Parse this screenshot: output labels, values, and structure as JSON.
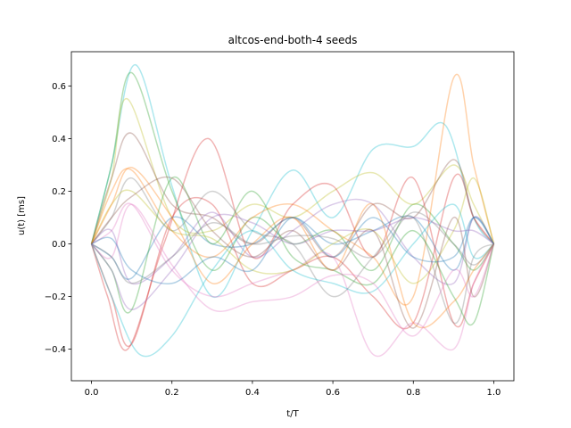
{
  "chart_data": {
    "type": "line",
    "title": "altcos-end-both-4 seeds",
    "xlabel": "t/T",
    "ylabel": "u(t) [ms]",
    "xlim": [
      -0.05,
      1.05
    ],
    "ylim": [
      -0.52,
      0.73
    ],
    "xticks": [
      0.0,
      0.2,
      0.4,
      0.6,
      0.8,
      1.0
    ],
    "xtick_labels": [
      "0.0",
      "0.2",
      "0.4",
      "0.6",
      "0.8",
      "1.0"
    ],
    "yticks": [
      -0.4,
      -0.2,
      0.0,
      0.2,
      0.4,
      0.6
    ],
    "ytick_labels": [
      "−0.4",
      "−0.2",
      "0.0",
      "0.2",
      "0.4",
      "0.6"
    ],
    "grid": false,
    "legend": "none",
    "line_opacity": 0.35,
    "series": [
      {
        "color": "#17becf",
        "x": [
          0,
          0.05,
          0.11,
          0.2,
          0.3,
          0.4,
          0.5,
          0.6,
          0.7,
          0.8,
          0.88,
          0.95,
          1
        ],
        "y": [
          0,
          0.3,
          0.68,
          0.22,
          -0.2,
          0.05,
          0.28,
          0.1,
          0.36,
          0.37,
          0.45,
          0.1,
          0
        ]
      },
      {
        "color": "#2ca02c",
        "x": [
          0,
          0.05,
          0.1,
          0.2,
          0.3,
          0.4,
          0.5,
          0.6,
          0.7,
          0.8,
          0.9,
          0.95,
          1
        ],
        "y": [
          0,
          0.3,
          0.65,
          0.2,
          -0.1,
          0.1,
          0.0,
          0.05,
          -0.1,
          0.15,
          0.0,
          -0.1,
          0
        ]
      },
      {
        "color": "#bcbd22",
        "x": [
          0,
          0.05,
          0.09,
          0.2,
          0.3,
          0.4,
          0.5,
          0.6,
          0.7,
          0.8,
          0.9,
          0.95,
          1
        ],
        "y": [
          0,
          0.25,
          0.55,
          0.1,
          0.05,
          0.15,
          0.1,
          0.2,
          0.27,
          0.15,
          0.3,
          0.15,
          0
        ]
      },
      {
        "color": "#ff7f0e",
        "x": [
          0,
          0.05,
          0.1,
          0.2,
          0.3,
          0.4,
          0.5,
          0.6,
          0.7,
          0.8,
          0.9,
          0.95,
          1
        ],
        "y": [
          0,
          0.2,
          0.28,
          0.05,
          -0.05,
          0.1,
          0.15,
          0.05,
          -0.05,
          -0.2,
          0.63,
          0.3,
          0
        ]
      },
      {
        "color": "#8c564b",
        "x": [
          0,
          0.05,
          0.1,
          0.2,
          0.3,
          0.4,
          0.5,
          0.6,
          0.7,
          0.8,
          0.9,
          0.95,
          1
        ],
        "y": [
          0,
          0.25,
          0.42,
          0.15,
          0.1,
          0.0,
          0.1,
          -0.05,
          0.15,
          0.1,
          0.32,
          0.1,
          0
        ]
      },
      {
        "color": "#d62728",
        "x": [
          0,
          0.04,
          0.09,
          0.18,
          0.29,
          0.4,
          0.5,
          0.6,
          0.7,
          0.8,
          0.9,
          0.95,
          1
        ],
        "y": [
          0,
          -0.2,
          -0.4,
          0.0,
          0.4,
          -0.05,
          0.15,
          0.22,
          -0.05,
          0.25,
          -0.3,
          -0.15,
          0
        ]
      },
      {
        "color": "#d62728",
        "x": [
          0,
          0.05,
          0.1,
          0.2,
          0.3,
          0.4,
          0.5,
          0.6,
          0.7,
          0.8,
          0.9,
          0.95,
          1
        ],
        "y": [
          0,
          -0.2,
          -0.38,
          0.1,
          0.15,
          -0.15,
          -0.1,
          -0.05,
          -0.2,
          -0.3,
          0.25,
          0.1,
          0
        ]
      },
      {
        "color": "#e377c2",
        "x": [
          0,
          0.05,
          0.1,
          0.2,
          0.3,
          0.4,
          0.5,
          0.6,
          0.7,
          0.8,
          0.9,
          0.95,
          1
        ],
        "y": [
          0,
          0.05,
          0.15,
          -0.1,
          -0.2,
          -0.15,
          -0.1,
          -0.05,
          -0.42,
          -0.3,
          -0.4,
          -0.15,
          0
        ]
      },
      {
        "color": "#9467bd",
        "x": [
          0,
          0.05,
          0.1,
          0.2,
          0.3,
          0.4,
          0.5,
          0.6,
          0.7,
          0.8,
          0.9,
          0.95,
          1
        ],
        "y": [
          0,
          0.05,
          -0.15,
          -0.05,
          0.12,
          -0.05,
          0.05,
          0.15,
          0.15,
          -0.05,
          -0.15,
          0.1,
          0
        ]
      },
      {
        "color": "#1f77b4",
        "x": [
          0,
          0.05,
          0.1,
          0.2,
          0.3,
          0.4,
          0.5,
          0.6,
          0.7,
          0.8,
          0.9,
          0.95,
          1
        ],
        "y": [
          0,
          -0.05,
          -0.13,
          0.1,
          0.0,
          0.0,
          0.1,
          0.0,
          0.05,
          0.1,
          -0.1,
          0.1,
          0
        ]
      },
      {
        "color": "#7f7f7f",
        "x": [
          0,
          0.05,
          0.1,
          0.2,
          0.3,
          0.4,
          0.5,
          0.6,
          0.7,
          0.8,
          0.9,
          0.95,
          1
        ],
        "y": [
          0,
          0.1,
          0.25,
          0.05,
          0.2,
          0.05,
          0.0,
          -0.2,
          -0.05,
          0.1,
          -0.3,
          -0.05,
          0
        ]
      },
      {
        "color": "#2ca02c",
        "x": [
          0,
          0.05,
          0.1,
          0.2,
          0.3,
          0.4,
          0.5,
          0.6,
          0.7,
          0.8,
          0.9,
          0.95,
          1
        ],
        "y": [
          0,
          -0.1,
          -0.25,
          0.25,
          0.0,
          0.2,
          -0.05,
          -0.1,
          -0.15,
          0.05,
          -0.2,
          -0.3,
          0
        ]
      },
      {
        "color": "#bcbd22",
        "x": [
          0,
          0.05,
          0.1,
          0.2,
          0.3,
          0.4,
          0.5,
          0.6,
          0.7,
          0.8,
          0.9,
          0.95,
          1
        ],
        "y": [
          0,
          0.15,
          0.2,
          0.05,
          0.02,
          -0.1,
          -0.1,
          0.0,
          0.05,
          -0.15,
          0.05,
          0.25,
          0
        ]
      },
      {
        "color": "#17becf",
        "x": [
          0,
          0.05,
          0.12,
          0.2,
          0.3,
          0.4,
          0.5,
          0.6,
          0.7,
          0.8,
          0.9,
          0.95,
          1
        ],
        "y": [
          0,
          -0.2,
          -0.42,
          -0.35,
          -0.1,
          0.05,
          -0.1,
          -0.15,
          -0.18,
          0.0,
          0.15,
          -0.05,
          0
        ]
      },
      {
        "color": "#ff7f0e",
        "x": [
          0,
          0.05,
          0.1,
          0.2,
          0.3,
          0.4,
          0.5,
          0.6,
          0.7,
          0.8,
          0.9,
          0.95,
          1
        ],
        "y": [
          0,
          0.15,
          0.29,
          0.1,
          -0.15,
          0.0,
          0.1,
          -0.1,
          0.15,
          -0.3,
          -0.22,
          -0.1,
          0
        ]
      },
      {
        "color": "#8c564b",
        "x": [
          0,
          0.05,
          0.1,
          0.2,
          0.3,
          0.4,
          0.5,
          0.6,
          0.7,
          0.8,
          0.9,
          0.95,
          1
        ],
        "y": [
          0,
          0.1,
          0.18,
          0.25,
          0.05,
          -0.05,
          0.05,
          -0.1,
          0.05,
          -0.32,
          0.1,
          -0.2,
          0
        ]
      },
      {
        "color": "#e377c2",
        "x": [
          0,
          0.05,
          0.1,
          0.2,
          0.3,
          0.4,
          0.5,
          0.6,
          0.7,
          0.8,
          0.9,
          0.95,
          1
        ],
        "y": [
          0,
          -0.05,
          0.15,
          -0.08,
          -0.25,
          -0.22,
          -0.2,
          -0.12,
          -0.15,
          -0.35,
          -0.1,
          -0.2,
          0
        ]
      },
      {
        "color": "#7f7f7f",
        "x": [
          0,
          0.05,
          0.1,
          0.2,
          0.3,
          0.4,
          0.5,
          0.6,
          0.7,
          0.8,
          0.9,
          0.95,
          1
        ],
        "y": [
          0,
          -0.05,
          -0.15,
          -0.05,
          0.08,
          0.0,
          0.03,
          0.02,
          -0.05,
          0.12,
          0.0,
          -0.08,
          0
        ]
      },
      {
        "color": "#9467bd",
        "x": [
          0,
          0.05,
          0.1,
          0.2,
          0.3,
          0.4,
          0.5,
          0.6,
          0.7,
          0.8,
          0.9,
          0.95,
          1
        ],
        "y": [
          0,
          -0.1,
          -0.25,
          -0.1,
          0.1,
          0.08,
          0.0,
          0.05,
          0.05,
          0.1,
          0.05,
          0.05,
          0
        ]
      },
      {
        "color": "#1f77b4",
        "x": [
          0,
          0.05,
          0.1,
          0.2,
          0.3,
          0.4,
          0.5,
          0.6,
          0.7,
          0.8,
          0.9,
          0.95,
          1
        ],
        "y": [
          0,
          0.02,
          -0.1,
          -0.15,
          -0.05,
          -0.1,
          0.1,
          -0.05,
          0.1,
          -0.05,
          -0.05,
          0.1,
          0
        ]
      }
    ]
  }
}
